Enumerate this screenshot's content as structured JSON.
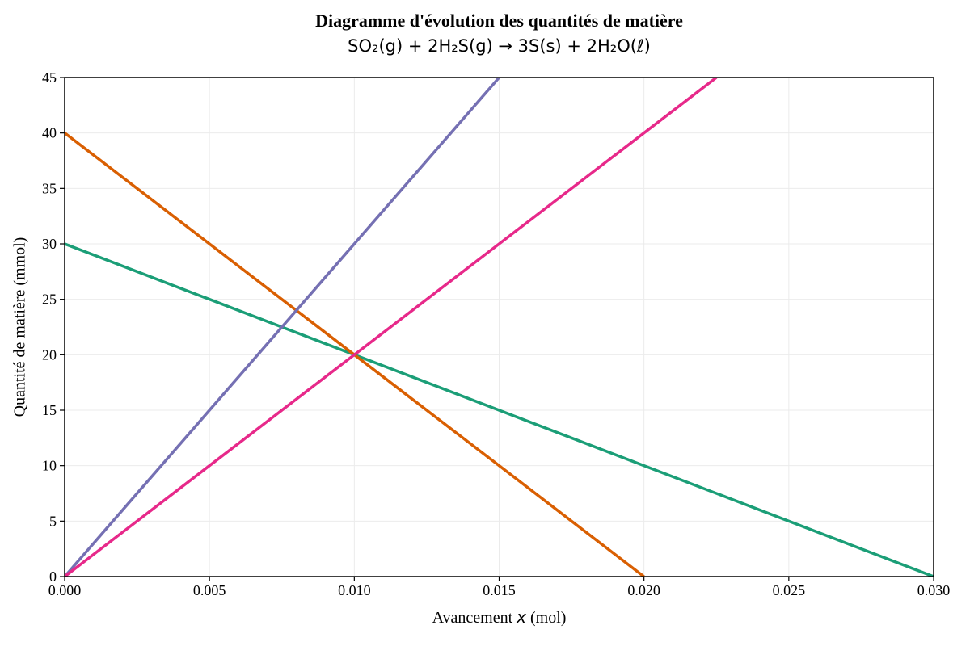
{
  "chart_data": {
    "type": "line",
    "title": "Diagramme d'évolution des quantités de matière",
    "subtitle": "SO₂(g) + 2H₂S(g) → 3S(s) + 2H₂O(ℓ)",
    "xlabel": "Avancement x (mol)",
    "xlabel_parts": {
      "prefix": "Avancement ",
      "variable": "x",
      "suffix": " (mol)"
    },
    "ylabel": "Quantité de matière (mmol)",
    "xlim": [
      0,
      0.03
    ],
    "ylim": [
      0,
      45
    ],
    "xticks": [
      "0.000",
      "0.005",
      "0.010",
      "0.015",
      "0.020",
      "0.025",
      "0.030"
    ],
    "yticks": [
      "0",
      "5",
      "10",
      "15",
      "20",
      "25",
      "30",
      "35",
      "40",
      "45"
    ],
    "grid": true,
    "grid_color": "#ebebeb",
    "frame_color": "#000000",
    "legend": "none",
    "line_width": 3.5,
    "intersection_point": {
      "x": 0.01,
      "y": 20
    },
    "series": [
      {
        "name": "SO₂(g)",
        "color": "#1b9e77",
        "x": [
          0,
          0.03
        ],
        "y": [
          30,
          0
        ]
      },
      {
        "name": "H₂S(g)",
        "color": "#d95f02",
        "x": [
          0,
          0.02
        ],
        "y": [
          40,
          0
        ]
      },
      {
        "name": "S(s)",
        "color": "#7570b3",
        "x": [
          0,
          0.015
        ],
        "y": [
          0,
          45
        ]
      },
      {
        "name": "H₂O(ℓ)",
        "color": "#e7298a",
        "x": [
          0,
          0.0225
        ],
        "y": [
          0,
          45
        ]
      }
    ]
  }
}
